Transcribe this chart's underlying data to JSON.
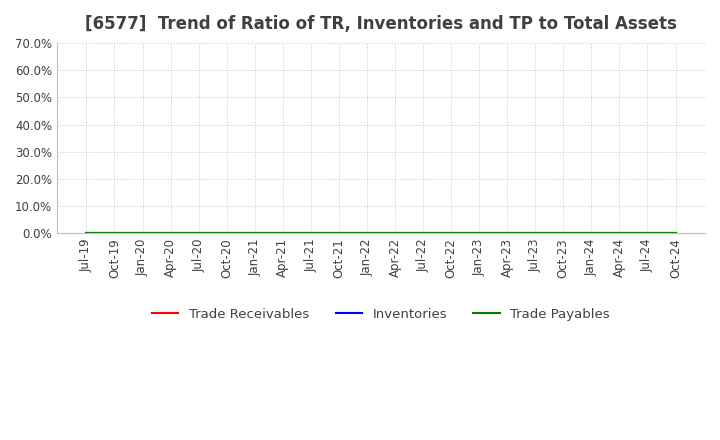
{
  "title": "[6577]  Trend of Ratio of TR, Inventories and TP to Total Assets",
  "title_fontsize": 12,
  "title_color": "#404040",
  "ylim": [
    0.0,
    0.7
  ],
  "yticks": [
    0.0,
    0.1,
    0.2,
    0.3,
    0.4,
    0.5,
    0.6,
    0.7
  ],
  "ytick_labels": [
    "0.0%",
    "10.0%",
    "20.0%",
    "30.0%",
    "40.0%",
    "50.0%",
    "60.0%",
    "70.0%"
  ],
  "x_labels": [
    "Jul-19",
    "Oct-19",
    "Jan-20",
    "Apr-20",
    "Jul-20",
    "Oct-20",
    "Jan-21",
    "Apr-21",
    "Jul-21",
    "Oct-21",
    "Jan-22",
    "Apr-22",
    "Jul-22",
    "Oct-22",
    "Jan-23",
    "Apr-23",
    "Jul-23",
    "Oct-23",
    "Jan-24",
    "Apr-24",
    "Jul-24",
    "Oct-24"
  ],
  "trade_receivables_color": "#ff0000",
  "inventories_color": "#0000ff",
  "trade_payables_color": "#008000",
  "line_width": 1.5,
  "legend_labels": [
    "Trade Receivables",
    "Inventories",
    "Trade Payables"
  ],
  "grid_color": "#c8c8c8",
  "background_color": "#ffffff",
  "plot_bg_color": "#ffffff",
  "tick_label_color": "#404040",
  "tick_label_fontsize": 8.5,
  "trade_receivables_values": [
    0,
    0,
    0,
    0,
    0,
    0,
    0,
    0,
    0,
    0,
    0,
    0,
    0,
    0,
    0,
    0,
    0,
    0,
    0,
    0,
    0,
    0
  ],
  "inventories_values": [
    0,
    0,
    0,
    0,
    0,
    0,
    0,
    0,
    0,
    0,
    0,
    0,
    0,
    0,
    0,
    0,
    0,
    0,
    0,
    0,
    0,
    0
  ],
  "trade_payables_values": [
    0,
    0,
    0,
    0,
    0,
    0,
    0,
    0,
    0,
    0,
    0,
    0,
    0,
    0,
    0,
    0,
    0,
    0,
    0,
    0,
    0,
    0
  ]
}
